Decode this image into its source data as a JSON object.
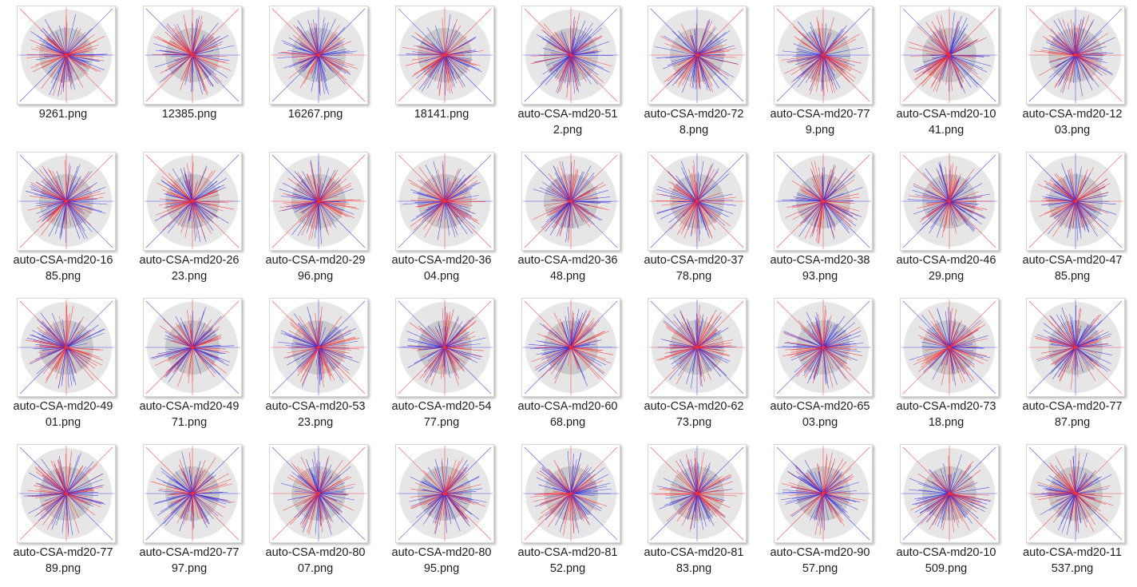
{
  "files": [
    {
      "name": "9261.png",
      "line1": "9261.png",
      "line2": ""
    },
    {
      "name": "12385.png",
      "line1": "12385.png",
      "line2": ""
    },
    {
      "name": "16267.png",
      "line1": "16267.png",
      "line2": ""
    },
    {
      "name": "18141.png",
      "line1": "18141.png",
      "line2": ""
    },
    {
      "name": "auto-CSA-md20-512.png",
      "line1": "auto-CSA-md20-51",
      "line2": "2.png"
    },
    {
      "name": "auto-CSA-md20-728.png",
      "line1": "auto-CSA-md20-72",
      "line2": "8.png"
    },
    {
      "name": "auto-CSA-md20-779.png",
      "line1": "auto-CSA-md20-77",
      "line2": "9.png"
    },
    {
      "name": "auto-CSA-md20-1041.png",
      "line1": "auto-CSA-md20-10",
      "line2": "41.png"
    },
    {
      "name": "auto-CSA-md20-1203.png",
      "line1": "auto-CSA-md20-12",
      "line2": "03.png"
    },
    {
      "name": "auto-CSA-md20-1685.png",
      "line1": "auto-CSA-md20-16",
      "line2": "85.png"
    },
    {
      "name": "auto-CSA-md20-2623.png",
      "line1": "auto-CSA-md20-26",
      "line2": "23.png"
    },
    {
      "name": "auto-CSA-md20-2996.png",
      "line1": "auto-CSA-md20-29",
      "line2": "96.png"
    },
    {
      "name": "auto-CSA-md20-3604.png",
      "line1": "auto-CSA-md20-36",
      "line2": "04.png"
    },
    {
      "name": "auto-CSA-md20-3648.png",
      "line1": "auto-CSA-md20-36",
      "line2": "48.png"
    },
    {
      "name": "auto-CSA-md20-3778.png",
      "line1": "auto-CSA-md20-37",
      "line2": "78.png"
    },
    {
      "name": "auto-CSA-md20-3893.png",
      "line1": "auto-CSA-md20-38",
      "line2": "93.png"
    },
    {
      "name": "auto-CSA-md20-4629.png",
      "line1": "auto-CSA-md20-46",
      "line2": "29.png"
    },
    {
      "name": "auto-CSA-md20-4785.png",
      "line1": "auto-CSA-md20-47",
      "line2": "85.png"
    },
    {
      "name": "auto-CSA-md20-4901.png",
      "line1": "auto-CSA-md20-49",
      "line2": "01.png"
    },
    {
      "name": "auto-CSA-md20-4971.png",
      "line1": "auto-CSA-md20-49",
      "line2": "71.png"
    },
    {
      "name": "auto-CSA-md20-5323.png",
      "line1": "auto-CSA-md20-53",
      "line2": "23.png"
    },
    {
      "name": "auto-CSA-md20-5477.png",
      "line1": "auto-CSA-md20-54",
      "line2": "77.png"
    },
    {
      "name": "auto-CSA-md20-6068.png",
      "line1": "auto-CSA-md20-60",
      "line2": "68.png"
    },
    {
      "name": "auto-CSA-md20-6273.png",
      "line1": "auto-CSA-md20-62",
      "line2": "73.png"
    },
    {
      "name": "auto-CSA-md20-6503.png",
      "line1": "auto-CSA-md20-65",
      "line2": "03.png"
    },
    {
      "name": "auto-CSA-md20-7318.png",
      "line1": "auto-CSA-md20-73",
      "line2": "18.png"
    },
    {
      "name": "auto-CSA-md20-7787.png",
      "line1": "auto-CSA-md20-77",
      "line2": "87.png"
    },
    {
      "name": "auto-CSA-md20-7789.png",
      "line1": "auto-CSA-md20-77",
      "line2": "89.png"
    },
    {
      "name": "auto-CSA-md20-7797.png",
      "line1": "auto-CSA-md20-77",
      "line2": "97.png"
    },
    {
      "name": "auto-CSA-md20-8007.png",
      "line1": "auto-CSA-md20-80",
      "line2": "07.png"
    },
    {
      "name": "auto-CSA-md20-8095.png",
      "line1": "auto-CSA-md20-80",
      "line2": "95.png"
    },
    {
      "name": "auto-CSA-md20-8152.png",
      "line1": "auto-CSA-md20-81",
      "line2": "52.png"
    },
    {
      "name": "auto-CSA-md20-8183.png",
      "line1": "auto-CSA-md20-81",
      "line2": "83.png"
    },
    {
      "name": "auto-CSA-md20-9057.png",
      "line1": "auto-CSA-md20-90",
      "line2": "57.png"
    },
    {
      "name": "auto-CSA-md20-10509.png",
      "line1": "auto-CSA-md20-10",
      "line2": "509.png"
    },
    {
      "name": "auto-CSA-md20-11537.png",
      "line1": "auto-CSA-md20-11",
      "line2": "537.png"
    }
  ],
  "thumbnail_colors": {
    "red": "#ff2b2b",
    "blue": "#2d2de6",
    "circle_outer": "#e6e6e6",
    "circle_inner": "#c9c9c9"
  }
}
